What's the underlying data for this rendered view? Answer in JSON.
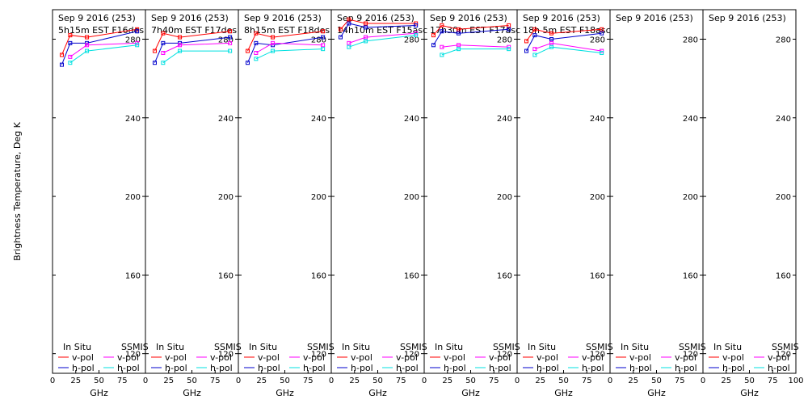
{
  "chart_data": {
    "type": "line",
    "ylabel": "Brightness Temperature, Deg K",
    "xlabel": "GHz",
    "xlim": [
      0,
      100
    ],
    "ylim": [
      110,
      295
    ],
    "x_ticks": [
      0,
      25,
      50,
      75,
      100
    ],
    "y_ticks": [
      120,
      160,
      200,
      240,
      280
    ],
    "legend": {
      "in_situ_header": "In Situ",
      "ssmis_header": "SSMIS",
      "vpol_label": "v-pol",
      "hpol_label": "h-pol"
    },
    "colors": {
      "in_situ_v": "#ff0000",
      "in_situ_h": "#0000cc",
      "ssmis_v": "#ff00ff",
      "ssmis_h": "#00e0e0"
    },
    "panels": [
      {
        "date": "Sep 9 2016 (253)",
        "time": "5h15m EST F16des",
        "series": {
          "in_situ_v": [
            [
              10,
              272
            ],
            [
              19,
              282
            ],
            [
              37,
              281
            ],
            [
              91,
              285
            ]
          ],
          "in_situ_h": [
            [
              10,
              267
            ],
            [
              19,
              278
            ],
            [
              37,
              278
            ],
            [
              91,
              284
            ]
          ],
          "ssmis_v": [
            [
              19,
              271
            ],
            [
              37,
              277
            ],
            [
              91,
              278
            ]
          ],
          "ssmis_h": [
            [
              19,
              268
            ],
            [
              37,
              274
            ],
            [
              91,
              277
            ]
          ]
        }
      },
      {
        "date": "Sep 9 2016 (253)",
        "time": "7h40m EST F17des",
        "series": {
          "in_situ_v": [
            [
              10,
              274
            ],
            [
              19,
              283
            ],
            [
              37,
              281
            ],
            [
              91,
              284
            ]
          ],
          "in_situ_h": [
            [
              10,
              268
            ],
            [
              19,
              278
            ],
            [
              37,
              278
            ],
            [
              91,
              281
            ]
          ],
          "ssmis_v": [
            [
              19,
              273
            ],
            [
              37,
              277
            ],
            [
              91,
              278
            ]
          ],
          "ssmis_h": [
            [
              19,
              268
            ],
            [
              37,
              274
            ],
            [
              91,
              274
            ]
          ]
        }
      },
      {
        "date": "Sep 9 2016 (253)",
        "time": "8h15m EST F18des",
        "series": {
          "in_situ_v": [
            [
              10,
              274
            ],
            [
              19,
              283
            ],
            [
              37,
              281
            ],
            [
              91,
              284
            ]
          ],
          "in_situ_h": [
            [
              10,
              268
            ],
            [
              19,
              278
            ],
            [
              37,
              277
            ],
            [
              91,
              281
            ]
          ],
          "ssmis_v": [
            [
              19,
              273
            ],
            [
              37,
              278
            ],
            [
              91,
              277
            ]
          ],
          "ssmis_h": [
            [
              19,
              270
            ],
            [
              37,
              274
            ],
            [
              91,
              275
            ]
          ]
        }
      },
      {
        "date": "Sep 9 2016 (253)",
        "time": "14h10m EST F15asc",
        "series": {
          "in_situ_v": [
            [
              10,
              285
            ],
            [
              19,
              290
            ],
            [
              37,
              288
            ],
            [
              91,
              288
            ]
          ],
          "in_situ_h": [
            [
              10,
              281
            ],
            [
              19,
              288
            ],
            [
              37,
              286
            ],
            [
              91,
              287
            ]
          ],
          "ssmis_v": [
            [
              19,
              278
            ],
            [
              37,
              281
            ],
            [
              91,
              283
            ]
          ],
          "ssmis_h": [
            [
              19,
              276
            ],
            [
              37,
              279
            ],
            [
              91,
              282
            ]
          ]
        }
      },
      {
        "date": "Sep 9 2016 (253)",
        "time": "17h30m EST F17asc",
        "series": {
          "in_situ_v": [
            [
              10,
              282
            ],
            [
              19,
              287
            ],
            [
              37,
              285
            ],
            [
              91,
              287
            ]
          ],
          "in_situ_h": [
            [
              10,
              277
            ],
            [
              19,
              284
            ],
            [
              37,
              283
            ],
            [
              91,
              285
            ]
          ],
          "ssmis_v": [
            [
              19,
              276
            ],
            [
              37,
              277
            ],
            [
              91,
              276
            ]
          ],
          "ssmis_h": [
            [
              19,
              272
            ],
            [
              37,
              275
            ],
            [
              91,
              275
            ]
          ]
        }
      },
      {
        "date": "Sep 9 2016 (253)",
        "time": "18h 5m EST F18asc",
        "series": {
          "in_situ_v": [
            [
              10,
              279
            ],
            [
              19,
              285
            ],
            [
              37,
              283
            ],
            [
              91,
              285
            ]
          ],
          "in_situ_h": [
            [
              10,
              274
            ],
            [
              19,
              282
            ],
            [
              37,
              280
            ],
            [
              91,
              283
            ]
          ],
          "ssmis_v": [
            [
              19,
              275
            ],
            [
              37,
              278
            ],
            [
              91,
              274
            ]
          ],
          "ssmis_h": [
            [
              19,
              272
            ],
            [
              37,
              276
            ],
            [
              91,
              273
            ]
          ]
        }
      },
      {
        "date": "Sep 9 2016 (253)",
        "time": "",
        "series": {}
      },
      {
        "date": "Sep 9 2016 (253)",
        "time": "",
        "series": {}
      }
    ]
  }
}
